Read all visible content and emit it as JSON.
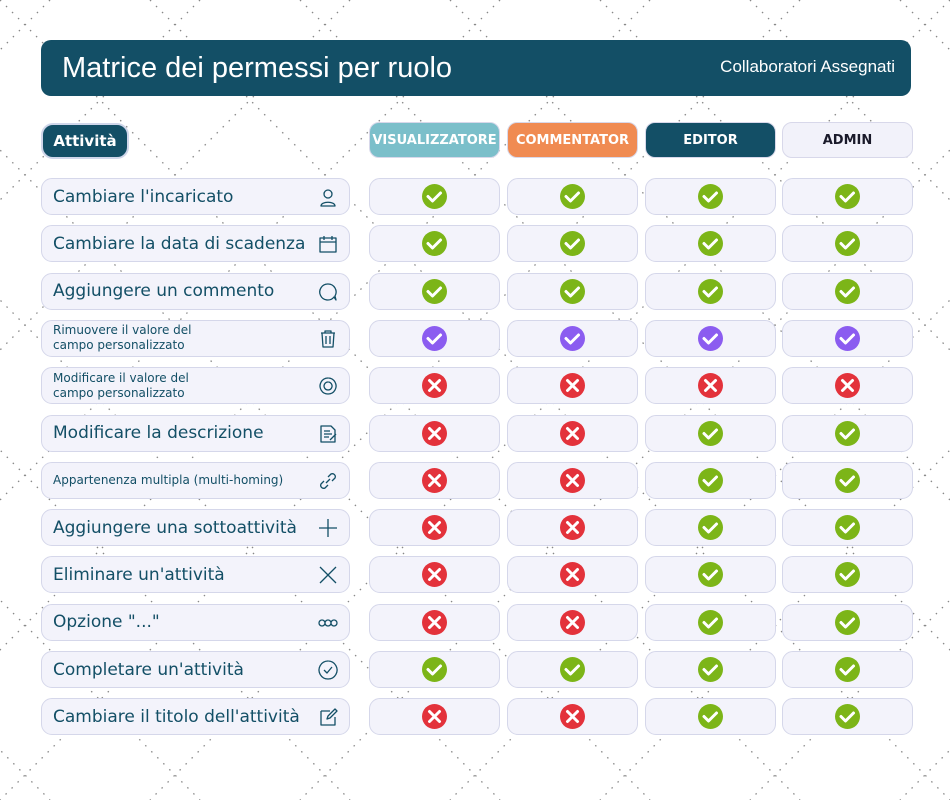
{
  "header": {
    "title": "Matrice dei permessi per ruolo",
    "subtitle": "Collaboratori Assegnati"
  },
  "table": {
    "first_header": "Attività",
    "check_color": "#7cb518",
    "cross_color": "#e3323b",
    "roles": [
      {
        "label": "VISUALIZZATORE",
        "color": "#7bbfca",
        "text_color": "#ffffff"
      },
      {
        "label": "COMMENTATOR",
        "color": "#f08b52",
        "text_color": "#ffffff"
      },
      {
        "label": "EDITOR",
        "color": "#134f66",
        "text_color": "#ffffff"
      },
      {
        "label": "ADMIN",
        "color": "#f2f2fa",
        "text_color": "#1a1a2a"
      }
    ],
    "rows": [
      {
        "label": [
          "Cambiare l'incaricato"
        ],
        "permissions": [
          true,
          true,
          true,
          true
        ]
      },
      {
        "label": [
          "Cambiare la data di scadenza"
        ],
        "permissions": [
          true,
          true,
          true,
          true
        ]
      },
      {
        "label": [
          "Aggiungere un commento"
        ],
        "permissions": [
          true,
          true,
          true,
          true
        ]
      },
      {
        "label": [
          "Rimuovere il valore del",
          "campo personalizzato"
        ],
        "permissions": [
          true,
          true,
          true,
          true
        ],
        "check_color": "#8b5cf0"
      },
      {
        "label": [
          "Modificare il valore del",
          "campo personalizzato"
        ],
        "permissions": [
          false,
          false,
          false,
          false
        ]
      },
      {
        "label": [
          "Modificare la descrizione"
        ],
        "permissions": [
          false,
          false,
          true,
          true
        ]
      },
      {
        "label": [
          "Appartenenza multipla (multi-homing)"
        ],
        "permissions": [
          false,
          false,
          true,
          true
        ]
      },
      {
        "label": [
          "Aggiungere una sottoattività"
        ],
        "permissions": [
          false,
          false,
          true,
          true
        ]
      },
      {
        "label": [
          "Eliminare un'attività"
        ],
        "permissions": [
          false,
          false,
          true,
          true
        ]
      },
      {
        "label": [
          "Opzione \"...\""
        ],
        "permissions": [
          false,
          false,
          true,
          true
        ]
      },
      {
        "label": [
          "Completare un'attività"
        ],
        "permissions": [
          true,
          true,
          true,
          true
        ]
      },
      {
        "label": [
          "Cambiare il titolo dell'attività"
        ],
        "permissions": [
          false,
          false,
          true,
          true
        ]
      }
    ]
  }
}
